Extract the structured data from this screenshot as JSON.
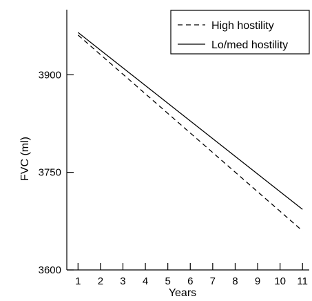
{
  "chart_data": {
    "type": "line",
    "title": "",
    "xlabel": "Years",
    "ylabel": "FVC (ml)",
    "x": [
      1,
      11
    ],
    "xticks": [
      1,
      2,
      3,
      4,
      5,
      6,
      7,
      8,
      9,
      10,
      11
    ],
    "xlim": [
      0.5,
      11.3
    ],
    "yticks": [
      3600,
      3750,
      3900
    ],
    "ylim": [
      3600,
      4000
    ],
    "legend_position": "top-right",
    "series": [
      {
        "name": "High hostility",
        "style": "dashed",
        "color": "#000000",
        "values": [
          3961,
          3660
        ]
      },
      {
        "name": "Lo/med hostility",
        "style": "solid",
        "color": "#000000",
        "values": [
          3965,
          3693
        ]
      }
    ]
  }
}
